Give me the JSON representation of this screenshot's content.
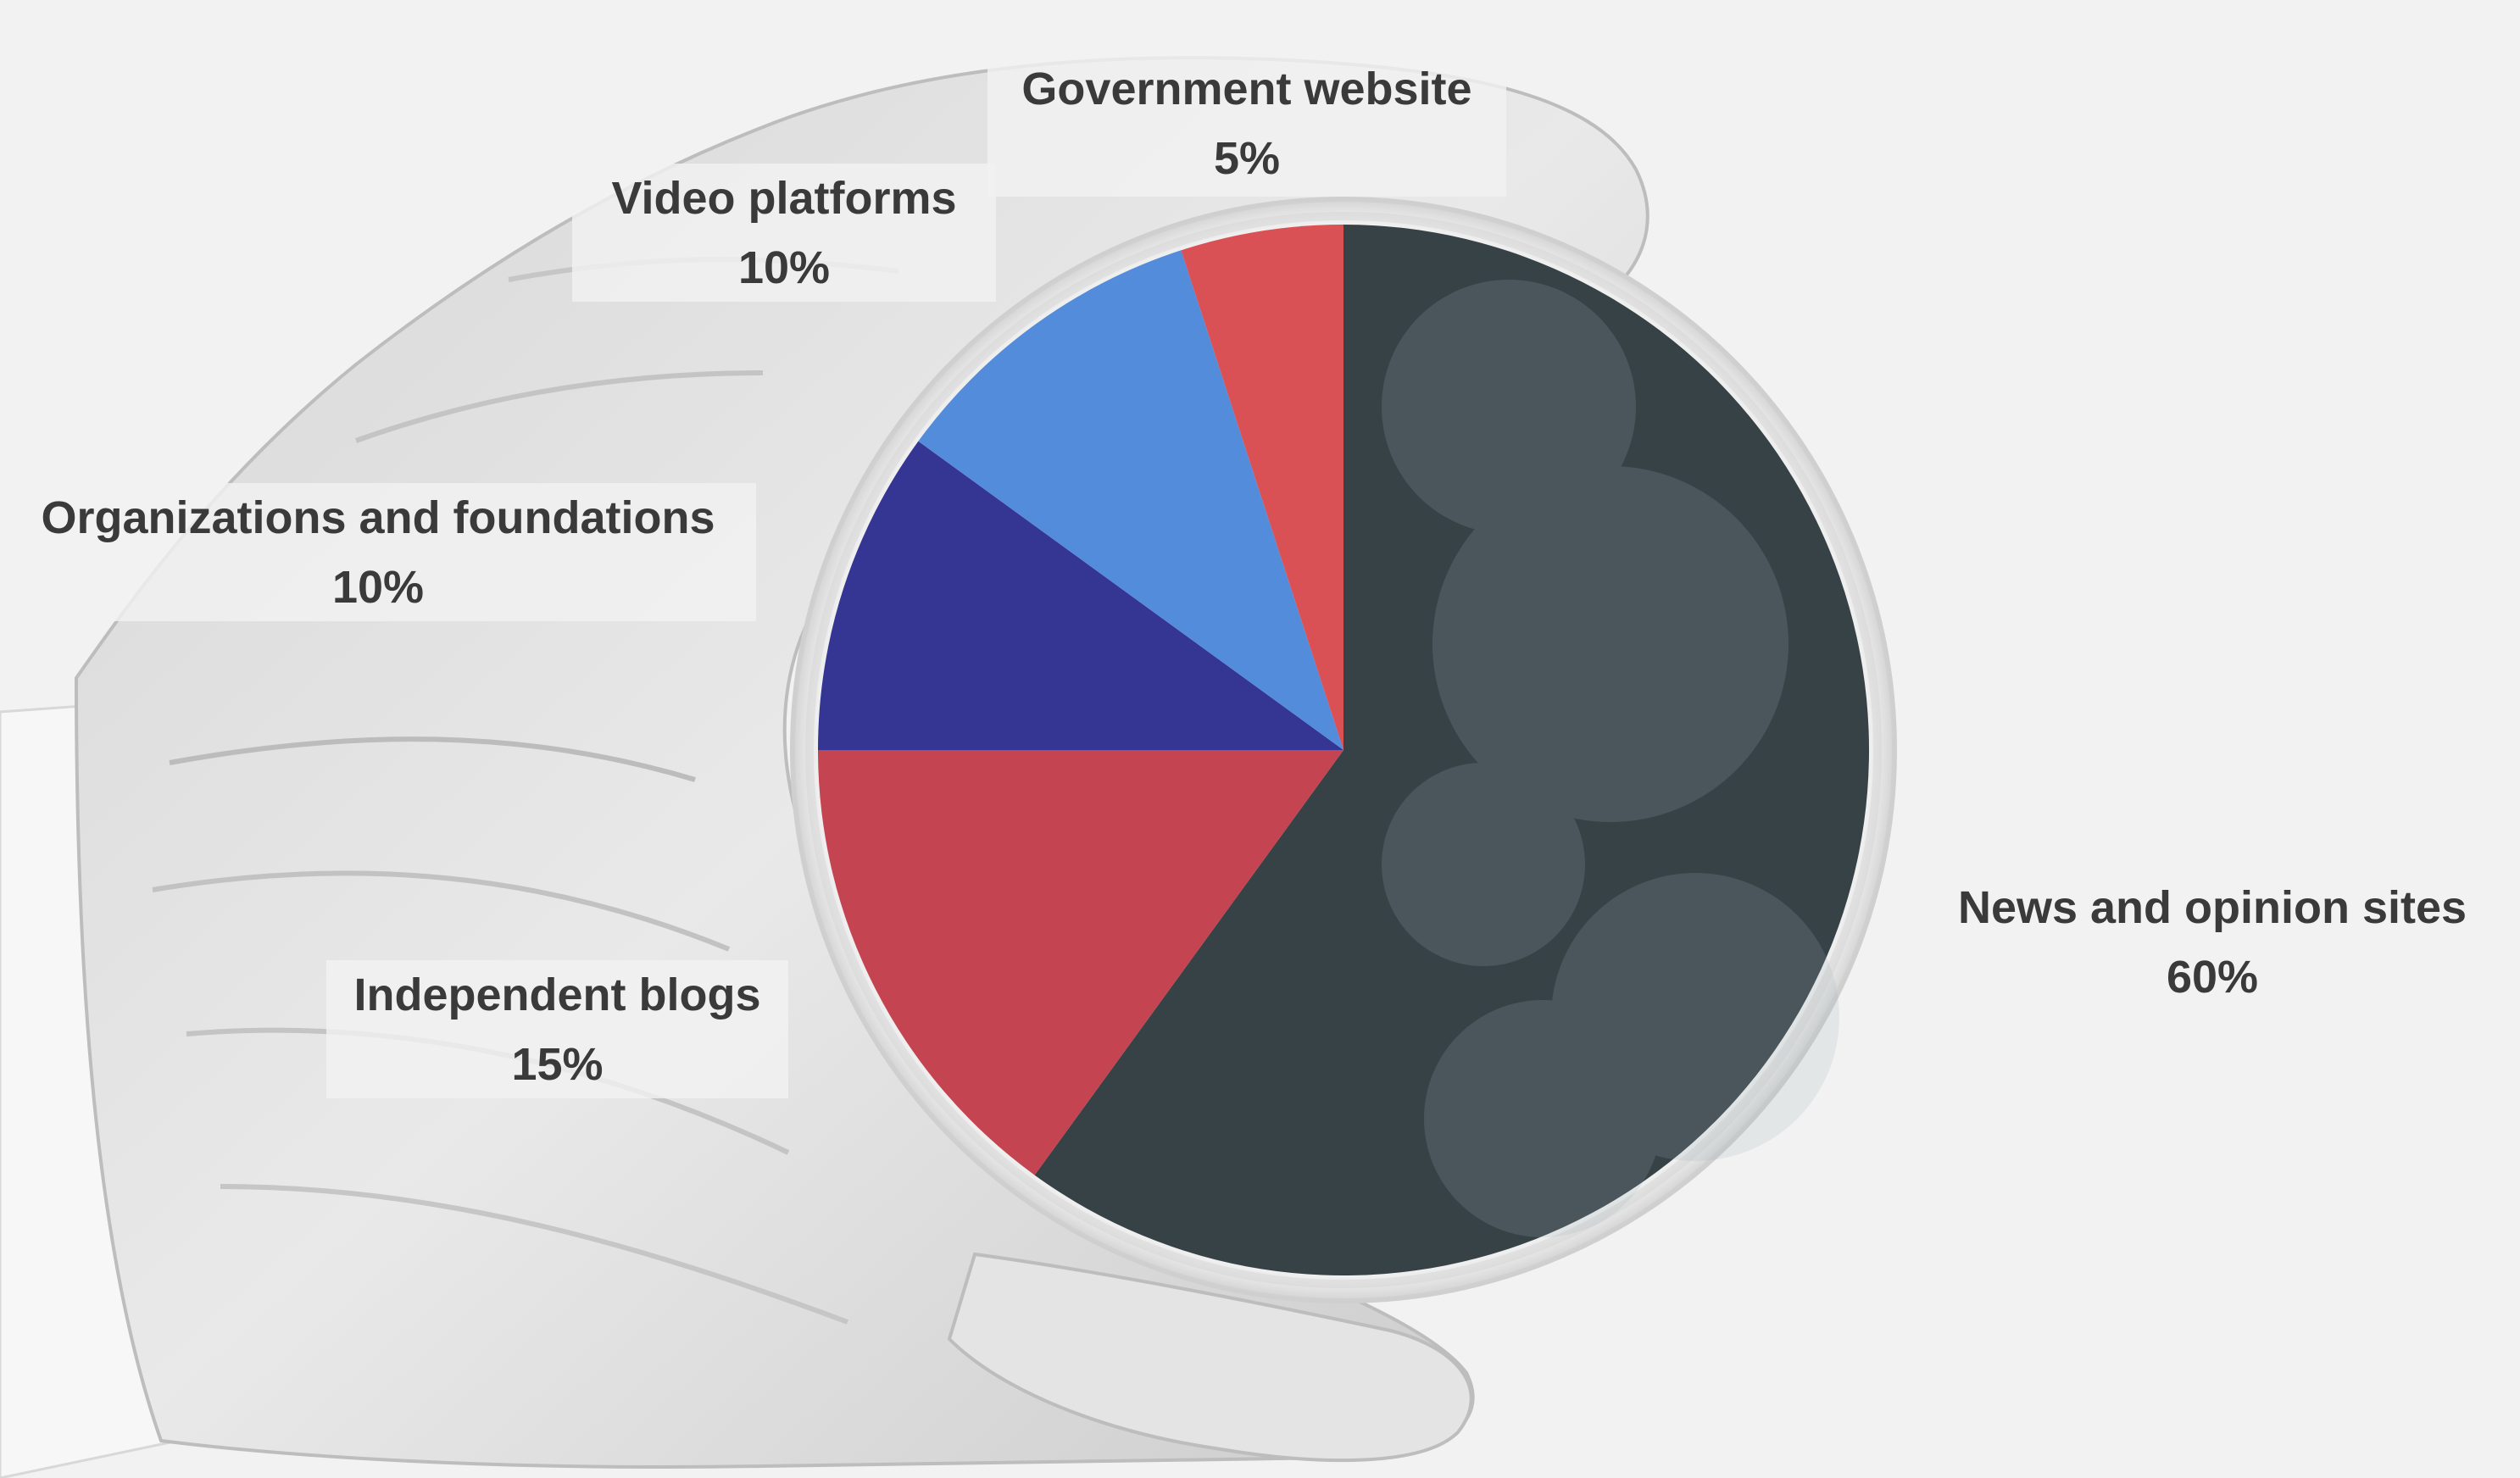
{
  "chart_data": {
    "type": "pie",
    "title": "",
    "slices": [
      {
        "label": "News and opinion sites",
        "value": 60,
        "value_label": "60%",
        "color": "#2c383d"
      },
      {
        "label": "Independent blogs",
        "value": 15,
        "value_label": "15%",
        "color": "#c23a48"
      },
      {
        "label": "Organizations and foundations",
        "value": 10,
        "value_label": "10%",
        "color": "#2a2a8e"
      },
      {
        "label": "Video platforms",
        "value": 10,
        "value_label": "10%",
        "color": "#4a86d8"
      },
      {
        "label": "Government website",
        "value": 5,
        "value_label": "5%",
        "color": "#d8484c"
      }
    ],
    "start_angle_deg": 0,
    "direction": "clockwise",
    "legend": "none",
    "background": "gloved hand holding a petri dish"
  },
  "colors": {
    "background": "#f2f2f2",
    "label_text": "#3a3a3a",
    "label_box": "#f2f2f2"
  }
}
